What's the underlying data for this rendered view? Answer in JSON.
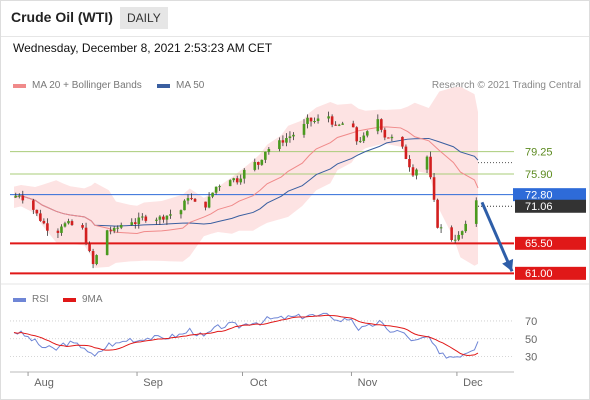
{
  "header": {
    "title": "Crude Oil (WTI)",
    "timeframe": "DAILY"
  },
  "timestamp": "Wednesday, December 8, 2021 2:53:23 AM CET",
  "legend": {
    "ma20": {
      "label": "MA 20 + Bollinger Bands",
      "color": "#f08a8a"
    },
    "ma50": {
      "label": "MA 50",
      "color": "#3a5fa0"
    },
    "rsi": {
      "label": "RSI",
      "color": "#6f86d6"
    },
    "rsi_ma": {
      "label": "9MA",
      "color": "#e01818"
    }
  },
  "copyright": "Research © 2021 Trading Central",
  "chart_data": {
    "type": "line",
    "x_ticks": [
      "Aug",
      "Sep",
      "Oct",
      "Nov",
      "Dec"
    ],
    "price_axis": {
      "levels": [
        {
          "value": 79.25,
          "label": "79.25",
          "kind": "resistance"
        },
        {
          "value": 75.9,
          "label": "75.90",
          "kind": "resistance"
        },
        {
          "value": 72.8,
          "label": "72.80",
          "kind": "pivot"
        },
        {
          "value": 71.06,
          "label": "71.06",
          "kind": "last"
        },
        {
          "value": 65.5,
          "label": "65.50",
          "kind": "support"
        },
        {
          "value": 61.0,
          "label": "61.00",
          "kind": "support"
        }
      ]
    },
    "close_series": [
      {
        "d": "2021-07-28",
        "c": 72.4
      },
      {
        "d": "2021-07-30",
        "c": 72.9
      },
      {
        "d": "2021-08-03",
        "c": 70.6
      },
      {
        "d": "2021-08-05",
        "c": 69.1
      },
      {
        "d": "2021-08-09",
        "c": 66.5
      },
      {
        "d": "2021-08-11",
        "c": 68.3
      },
      {
        "d": "2021-08-13",
        "c": 68.4
      },
      {
        "d": "2021-08-17",
        "c": 67.6
      },
      {
        "d": "2021-08-19",
        "c": 64.0
      },
      {
        "d": "2021-08-20",
        "c": 62.3
      },
      {
        "d": "2021-08-24",
        "c": 67.5
      },
      {
        "d": "2021-08-26",
        "c": 67.4
      },
      {
        "d": "2021-08-30",
        "c": 69.2
      },
      {
        "d": "2021-09-01",
        "c": 68.6
      },
      {
        "d": "2021-09-03",
        "c": 69.3
      },
      {
        "d": "2021-09-08",
        "c": 69.3
      },
      {
        "d": "2021-09-10",
        "c": 69.7
      },
      {
        "d": "2021-09-14",
        "c": 70.5
      },
      {
        "d": "2021-09-16",
        "c": 72.6
      },
      {
        "d": "2021-09-20",
        "c": 70.3
      },
      {
        "d": "2021-09-22",
        "c": 72.2
      },
      {
        "d": "2021-09-24",
        "c": 74.0
      },
      {
        "d": "2021-09-28",
        "c": 75.3
      },
      {
        "d": "2021-09-30",
        "c": 75.0
      },
      {
        "d": "2021-10-04",
        "c": 77.6
      },
      {
        "d": "2021-10-06",
        "c": 77.4
      },
      {
        "d": "2021-10-08",
        "c": 79.4
      },
      {
        "d": "2021-10-12",
        "c": 80.6
      },
      {
        "d": "2021-10-14",
        "c": 81.3
      },
      {
        "d": "2021-10-18",
        "c": 82.4
      },
      {
        "d": "2021-10-20",
        "c": 83.9
      },
      {
        "d": "2021-10-22",
        "c": 83.8
      },
      {
        "d": "2021-10-26",
        "c": 84.6
      },
      {
        "d": "2021-10-28",
        "c": 82.8
      },
      {
        "d": "2021-11-01",
        "c": 84.1
      },
      {
        "d": "2021-11-03",
        "c": 80.9
      },
      {
        "d": "2021-11-05",
        "c": 81.3
      },
      {
        "d": "2021-11-09",
        "c": 84.2
      },
      {
        "d": "2021-11-11",
        "c": 81.6
      },
      {
        "d": "2021-11-15",
        "c": 80.9
      },
      {
        "d": "2021-11-17",
        "c": 78.4
      },
      {
        "d": "2021-11-19",
        "c": 76.1
      },
      {
        "d": "2021-11-23",
        "c": 78.5
      },
      {
        "d": "2021-11-26",
        "c": 68.2
      },
      {
        "d": "2021-11-30",
        "c": 66.2
      },
      {
        "d": "2021-12-02",
        "c": 66.5
      },
      {
        "d": "2021-12-06",
        "c": 69.5
      },
      {
        "d": "2021-12-07",
        "c": 72.1
      }
    ],
    "rsi_series": {
      "axis_ticks": [
        70,
        50,
        30
      ],
      "values": [
        58,
        56,
        47,
        41,
        38,
        44,
        45,
        41,
        32,
        30,
        44,
        44,
        50,
        48,
        51,
        51,
        52,
        55,
        60,
        52,
        58,
        63,
        66,
        64,
        69,
        68,
        72,
        73,
        74,
        75,
        77,
        75,
        77,
        70,
        73,
        61,
        62,
        69,
        60,
        58,
        52,
        47,
        52,
        32,
        30,
        32,
        40,
        47
      ]
    }
  }
}
